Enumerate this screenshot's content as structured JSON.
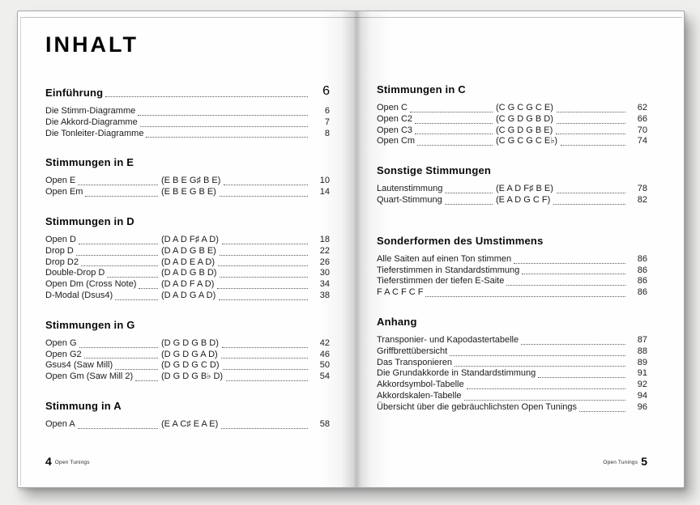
{
  "book": {
    "title": "INHALT",
    "footer_left": {
      "page_number": "4",
      "label": "Open Tunings"
    },
    "footer_right": {
      "page_number": "5",
      "label": "Open Tunings"
    },
    "left_sections": [
      {
        "heading": "Einführung",
        "page": "6",
        "entries": [
          {
            "name": "Die Stimm-Diagramme",
            "page": "6"
          },
          {
            "name": "Die Akkord-Diagramme",
            "page": "7"
          },
          {
            "name": "Die Tonleiter-Diagramme",
            "page": "8"
          }
        ]
      },
      {
        "heading": "Stimmungen in E",
        "entries": [
          {
            "name": "Open E",
            "tuning": "(E B E G♯ B E)",
            "page": "10"
          },
          {
            "name": "Open Em",
            "tuning": "(E B E G B E)",
            "page": "14"
          }
        ]
      },
      {
        "heading": "Stimmungen in D",
        "entries": [
          {
            "name": "Open D",
            "tuning": "(D A D F♯ A D)",
            "page": "18"
          },
          {
            "name": "Drop D",
            "tuning": "(D A D G B E)",
            "page": "22"
          },
          {
            "name": "Drop D2",
            "tuning": "(D A D E A D)",
            "page": "26"
          },
          {
            "name": "Double-Drop D",
            "tuning": "(D A D G B D)",
            "page": "30"
          },
          {
            "name": "Open Dm (Cross Note)",
            "tuning": "(D A D F A D)",
            "page": "34"
          },
          {
            "name": "D-Modal (Dsus4)",
            "tuning": "(D A D G A D)",
            "page": "38"
          }
        ]
      },
      {
        "heading": "Stimmungen in G",
        "entries": [
          {
            "name": "Open G",
            "tuning": "(D G D G B D)",
            "page": "42"
          },
          {
            "name": "Open G2",
            "tuning": "(D G D G A D)",
            "page": "46"
          },
          {
            "name": "Gsus4 (Saw Mill)",
            "tuning": "(D G D G C D)",
            "page": "50"
          },
          {
            "name": "Open Gm (Saw Mill 2)",
            "tuning": "(D G D G B♭ D)",
            "page": "54"
          }
        ]
      },
      {
        "heading": "Stimmung in A",
        "entries": [
          {
            "name": "Open A",
            "tuning": "(E A C♯ E A E)",
            "page": "58"
          }
        ]
      }
    ],
    "right_sections": [
      {
        "heading": "Stimmungen in C",
        "entries": [
          {
            "name": "Open C",
            "tuning": "(C G C G C E)",
            "page": "62"
          },
          {
            "name": "Open C2",
            "tuning": "(C G D G B D)",
            "page": "66"
          },
          {
            "name": "Open C3",
            "tuning": "(C G D G B E)",
            "page": "70"
          },
          {
            "name": "Open Cm",
            "tuning": "(C G C G C E♭)",
            "page": "74"
          }
        ]
      },
      {
        "heading": "Sonstige Stimmungen",
        "entries": [
          {
            "name": "Lautenstimmung",
            "tuning": "(E A D F♯ B E)",
            "page": "78"
          },
          {
            "name": "Quart-Stimmung",
            "tuning": "(E A D G C F)",
            "page": "82"
          }
        ]
      },
      {
        "heading": "Sonderformen des Umstimmens",
        "entries": [
          {
            "name": "Alle Saiten auf einen Ton stimmen",
            "page": "86"
          },
          {
            "name": "Tieferstimmen in Standardstimmung",
            "page": "86"
          },
          {
            "name": "Tieferstimmen der tiefen E-Saite",
            "page": "86"
          },
          {
            "name": "F A C F C F",
            "page": "86"
          }
        ]
      },
      {
        "heading": "Anhang",
        "entries": [
          {
            "name": "Transponier- und Kapodastertabelle",
            "page": "87"
          },
          {
            "name": "Griffbrettübersicht",
            "page": "88"
          },
          {
            "name": "Das Transponieren",
            "page": "89"
          },
          {
            "name": "Die Grundakkorde in Standardstimmung",
            "page": "91"
          },
          {
            "name": "Akkordsymbol-Tabelle",
            "page": "92"
          },
          {
            "name": "Akkordskalen-Tabelle",
            "page": "94"
          },
          {
            "name": "Übersicht über die gebräuchlichsten Open Tunings",
            "page": "96"
          }
        ]
      }
    ]
  }
}
